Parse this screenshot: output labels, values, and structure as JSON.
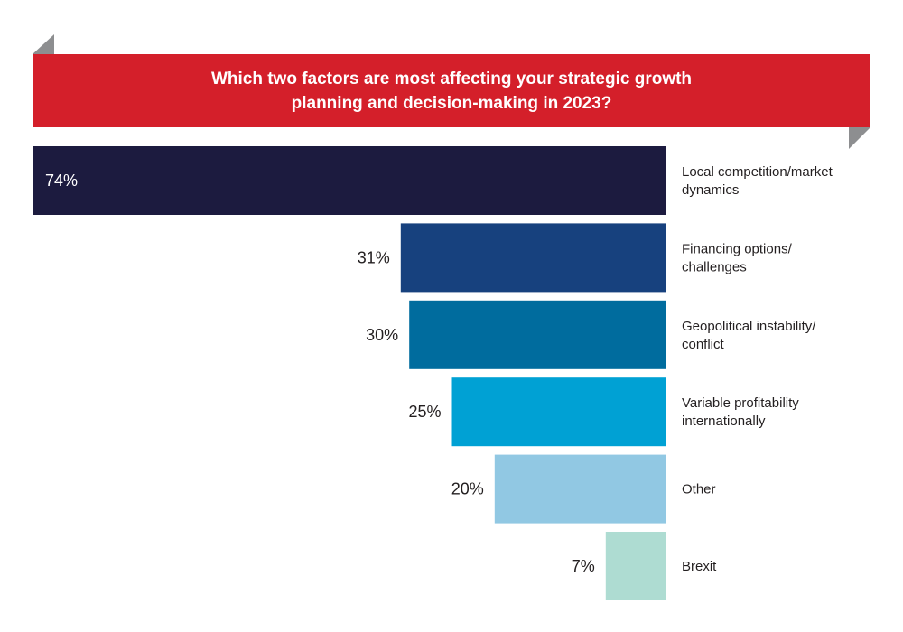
{
  "chart_data": {
    "type": "bar",
    "orientation": "horizontal",
    "title": "Which two factors are most affecting your strategic growth planning and decision-making in 2023?",
    "categories": [
      [
        "Local competition/market",
        "dynamics"
      ],
      [
        "Financing options/",
        "challenges"
      ],
      [
        "Geopolitical instability/",
        "conflict"
      ],
      [
        "Variable profitability",
        "internationally"
      ],
      [
        "Other"
      ],
      [
        "Brexit"
      ]
    ],
    "values": [
      74,
      31,
      30,
      25,
      20,
      7
    ],
    "value_labels": [
      "74%",
      "31%",
      "30%",
      "25%",
      "20%",
      "7%"
    ],
    "colors": [
      "#1c1b3f",
      "#17417e",
      "#006c9e",
      "#00a1d4",
      "#91c8e3",
      "#aedcd2"
    ],
    "xlim": [
      0,
      74
    ],
    "grid": false,
    "legend": "none"
  },
  "colors": {
    "banner": "#d41f2a",
    "banner_fold": "#8d8e90",
    "label_text": "#231f20"
  }
}
